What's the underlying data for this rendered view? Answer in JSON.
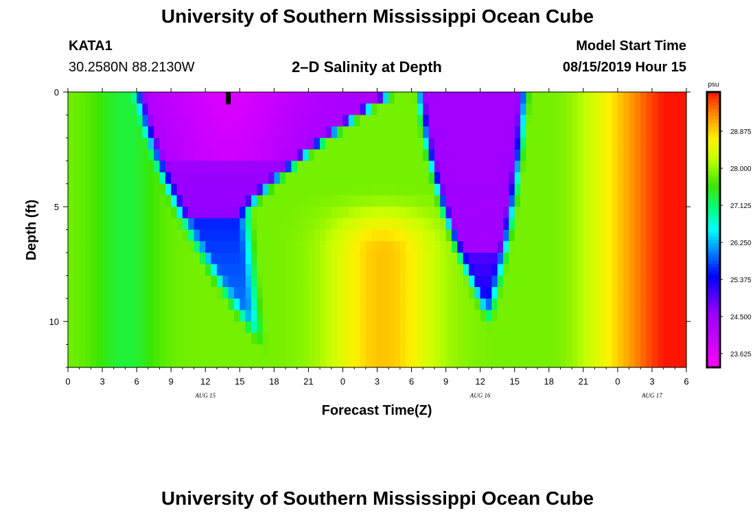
{
  "page": {
    "title_top": "University of Southern Mississippi Ocean Cube",
    "title_bottom": "University of Southern Mississippi Ocean Cube",
    "station": "KATA1",
    "coords": "30.2580N 88.2130W",
    "subtitle": "2–D Salinity at Depth",
    "model_label": "Model Start Time",
    "model_time": "08/15/2019 Hour 15"
  },
  "chart_data": {
    "type": "heatmap",
    "title": "2-D Salinity at Depth",
    "xlabel": "Forecast Time(Z)",
    "ylabel": "Depth (ft)",
    "x_hours_range": [
      0,
      54
    ],
    "x_tick_hours": [
      0,
      3,
      6,
      9,
      12,
      15,
      18,
      21,
      24,
      27,
      30,
      33,
      36,
      39,
      42,
      45,
      48,
      51,
      54
    ],
    "x_tick_labels": [
      "0",
      "3",
      "6",
      "9",
      "12",
      "15",
      "18",
      "21",
      "0",
      "3",
      "6",
      "9",
      "12",
      "15",
      "18",
      "21",
      "0",
      "3",
      "6"
    ],
    "date_labels": [
      {
        "hour": 12,
        "label": "AUG 15"
      },
      {
        "hour": 36,
        "label": "AUG 16"
      },
      {
        "hour": 51,
        "label": "AUG 17"
      }
    ],
    "y_range_ft": [
      0,
      12
    ],
    "y_tick_values": [
      0,
      5,
      10
    ],
    "y_tick_labels": [
      "0",
      "5",
      "10"
    ],
    "now_marker_hour": 14,
    "colorbar": {
      "unit": "psu",
      "min": 23.3,
      "max": 29.8,
      "tick_values": [
        23.625,
        24.5,
        25.375,
        26.25,
        27.125,
        28.0,
        28.875
      ],
      "tick_labels": [
        "23.625",
        "24.500",
        "25.375",
        "26.250",
        "27.125",
        "28.000",
        "28.875"
      ]
    },
    "field_description": "salinity (psu) by forecast hour and depth; low (magenta/purple) lenses near 7-15h and 31-40h, high (red) after 48h"
  }
}
